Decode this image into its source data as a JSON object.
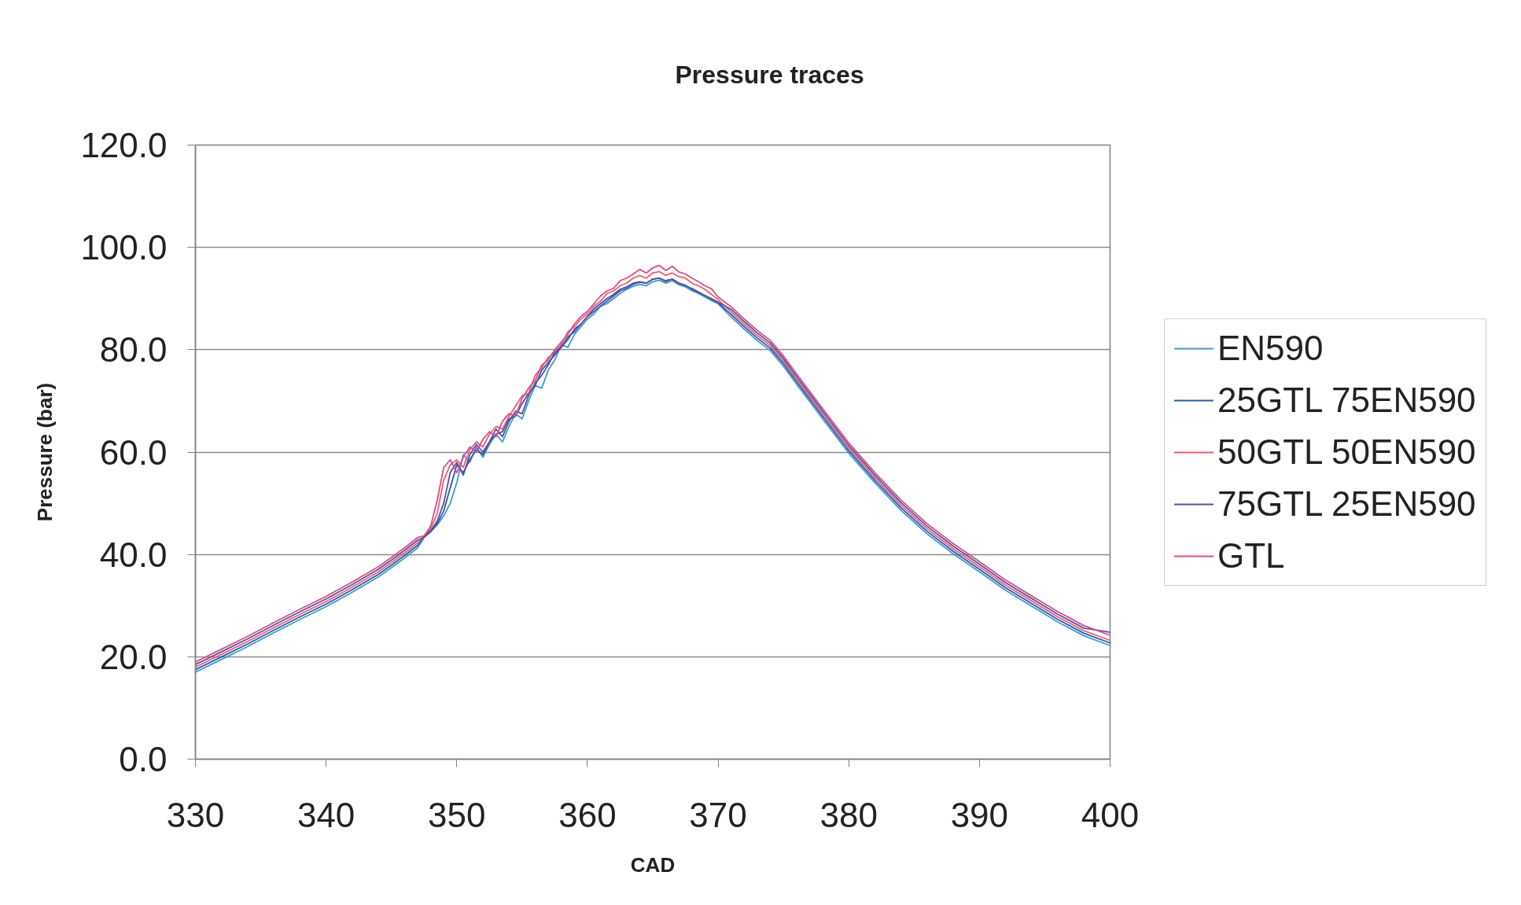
{
  "chart_data": {
    "type": "line",
    "title": "Pressure traces",
    "xlabel": "CAD",
    "ylabel": "Pressure (bar)",
    "x": [
      330,
      332,
      334,
      336,
      338,
      340,
      342,
      344,
      345,
      346,
      347,
      347.5,
      348,
      348.5,
      349,
      349.5,
      350,
      350.5,
      351,
      351.5,
      352,
      352.5,
      353,
      353.5,
      354,
      354.5,
      355,
      355.5,
      356,
      356.5,
      357,
      357.5,
      358,
      358.5,
      359,
      359.5,
      360,
      360.5,
      361,
      361.5,
      362,
      362.5,
      363,
      363.5,
      364,
      364.5,
      365,
      365.5,
      366,
      366.5,
      367,
      367.5,
      368,
      368.5,
      369,
      369.5,
      370,
      371,
      372,
      373,
      374,
      375,
      376,
      378,
      380,
      382,
      384,
      386,
      388,
      390,
      392,
      394,
      396,
      398,
      400
    ],
    "xlim": [
      330,
      400
    ],
    "xticks": [
      330,
      340,
      350,
      360,
      370,
      380,
      390,
      400
    ],
    "ylim": [
      0,
      120
    ],
    "yticks": [
      {
        "value": 0,
        "label": "0.0"
      },
      {
        "value": 20,
        "label": "20.0"
      },
      {
        "value": 40,
        "label": "40.0"
      },
      {
        "value": 60,
        "label": "60.0"
      },
      {
        "value": 80,
        "label": "80.0"
      },
      {
        "value": 100,
        "label": "100.0"
      },
      {
        "value": 120,
        "label": "120.0"
      }
    ],
    "grid": "y",
    "legend": "right",
    "line_style": "solid",
    "series": [
      {
        "name": "EN590",
        "color": "#3f9ad0",
        "values": [
          17.0,
          19.5,
          22.0,
          24.7,
          27.3,
          29.8,
          32.6,
          35.6,
          37.4,
          39.3,
          41.3,
          43.3,
          44.4,
          45.8,
          47.5,
          50.0,
          54.0,
          59.5,
          58.0,
          61.0,
          59.0,
          61.5,
          63.5,
          62.0,
          65.0,
          67.5,
          66.5,
          70.0,
          73.0,
          72.5,
          76.0,
          78.0,
          81.0,
          80.5,
          83.0,
          84.5,
          86.0,
          87.0,
          88.5,
          89.0,
          90.0,
          91.0,
          91.8,
          92.4,
          92.8,
          92.5,
          93.3,
          93.6,
          93.0,
          93.5,
          92.7,
          92.3,
          91.5,
          91.0,
          90.3,
          89.6,
          89.0,
          86.4,
          84.0,
          81.8,
          79.8,
          76.8,
          73.3,
          66.5,
          59.8,
          54.0,
          48.6,
          44.0,
          40.1,
          36.6,
          33.0,
          29.9,
          26.8,
          24.1,
          22.2
        ]
      },
      {
        "name": "25GTL 75EN590",
        "color": "#2c5aa8",
        "values": [
          17.5,
          20.0,
          22.5,
          25.2,
          27.8,
          30.3,
          33.1,
          36.1,
          37.9,
          39.8,
          41.8,
          43.4,
          44.5,
          46.0,
          48.5,
          53.0,
          57.5,
          56.0,
          58.5,
          60.5,
          59.5,
          62.0,
          63.5,
          64.0,
          66.5,
          67.0,
          69.5,
          71.5,
          73.0,
          76.0,
          77.5,
          79.0,
          80.5,
          82.0,
          84.0,
          85.0,
          86.5,
          88.0,
          89.0,
          90.0,
          90.8,
          91.8,
          92.3,
          93.0,
          93.3,
          93.0,
          93.8,
          94.0,
          93.5,
          93.8,
          93.0,
          92.6,
          91.8,
          91.2,
          90.6,
          89.9,
          89.2,
          86.9,
          84.5,
          82.3,
          80.3,
          77.3,
          73.8,
          67.0,
          60.3,
          54.5,
          49.1,
          44.5,
          40.6,
          37.1,
          33.5,
          30.4,
          27.3,
          24.6,
          22.7
        ]
      },
      {
        "name": "50GTL 50EN590",
        "color": "#e8606e",
        "values": [
          18.0,
          20.5,
          23.0,
          25.7,
          28.3,
          30.8,
          33.6,
          36.6,
          38.4,
          40.3,
          42.3,
          43.5,
          45.0,
          48.0,
          54.5,
          57.5,
          58.5,
          57.0,
          60.5,
          62.0,
          61.0,
          63.5,
          65.0,
          64.5,
          67.0,
          69.0,
          71.0,
          71.5,
          75.0,
          76.5,
          78.5,
          79.5,
          81.0,
          83.5,
          84.5,
          86.0,
          87.0,
          88.5,
          89.5,
          91.0,
          91.5,
          92.5,
          93.0,
          94.0,
          94.5,
          94.0,
          95.0,
          95.3,
          94.5,
          95.0,
          94.3,
          94.0,
          93.0,
          92.5,
          91.8,
          90.8,
          89.8,
          87.4,
          85.0,
          82.8,
          80.8,
          77.8,
          74.3,
          67.5,
          60.8,
          55.0,
          49.6,
          45.0,
          41.1,
          37.6,
          34.0,
          30.9,
          27.8,
          25.1,
          23.2
        ]
      },
      {
        "name": "75GTL 25EN590",
        "color": "#5a4fa0",
        "values": [
          18.5,
          21.0,
          23.5,
          26.2,
          28.8,
          31.3,
          34.1,
          37.1,
          38.9,
          40.8,
          42.8,
          43.4,
          44.6,
          46.5,
          50.0,
          56.0,
          58.0,
          55.5,
          59.5,
          61.5,
          60.0,
          62.0,
          64.5,
          63.0,
          66.0,
          68.0,
          67.5,
          71.0,
          73.5,
          75.0,
          77.0,
          79.5,
          80.5,
          82.5,
          83.5,
          85.0,
          86.5,
          87.5,
          88.5,
          89.5,
          90.5,
          91.5,
          92.0,
          92.8,
          93.2,
          93.0,
          93.8,
          94.0,
          93.3,
          93.8,
          93.0,
          92.5,
          92.0,
          91.3,
          90.5,
          90.0,
          89.3,
          87.9,
          85.5,
          83.3,
          81.3,
          78.3,
          74.8,
          68.0,
          61.3,
          55.5,
          50.1,
          45.5,
          41.6,
          38.1,
          34.5,
          31.4,
          28.3,
          25.6,
          24.8
        ]
      },
      {
        "name": "GTL",
        "color": "#d84c8c",
        "values": [
          19.0,
          21.5,
          24.0,
          26.7,
          29.3,
          31.8,
          34.6,
          37.6,
          39.4,
          41.3,
          43.3,
          43.6,
          45.5,
          50.5,
          57.0,
          58.5,
          56.0,
          59.0,
          61.0,
          60.0,
          62.5,
          64.0,
          63.0,
          66.0,
          67.5,
          67.0,
          70.5,
          72.5,
          74.0,
          77.0,
          78.0,
          80.0,
          81.5,
          83.0,
          85.0,
          86.5,
          87.5,
          89.0,
          90.5,
          91.5,
          92.0,
          93.5,
          94.0,
          94.8,
          95.7,
          95.0,
          96.0,
          96.5,
          95.5,
          96.3,
          95.2,
          94.8,
          94.0,
          93.3,
          92.5,
          91.9,
          90.3,
          88.4,
          86.0,
          83.8,
          81.8,
          78.8,
          75.3,
          68.5,
          61.8,
          56.0,
          50.6,
          46.0,
          42.1,
          38.6,
          35.0,
          31.9,
          28.8,
          26.1,
          24.2
        ]
      }
    ]
  }
}
